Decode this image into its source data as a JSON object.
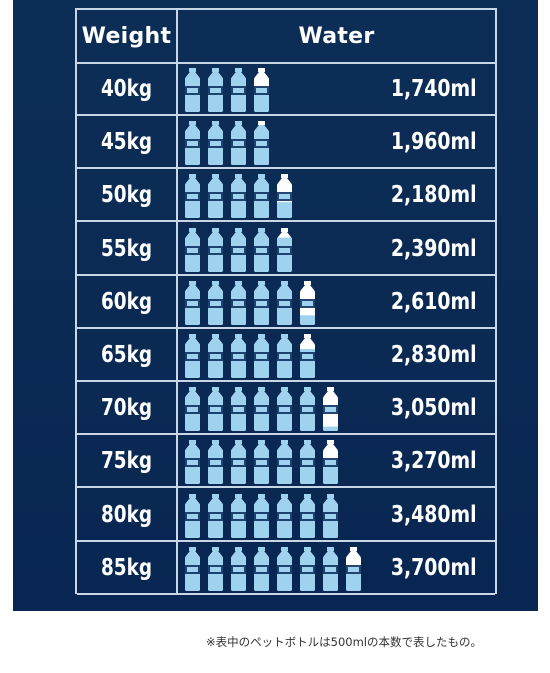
{
  "header": {
    "weight": "Weight",
    "water": "Water"
  },
  "chart_data": {
    "type": "table",
    "columns": [
      "Weight",
      "Water"
    ],
    "rows": [
      {
        "weight": "40kg",
        "water": "1,740ml",
        "water_ml": 1740,
        "bottles_500ml": 3.48
      },
      {
        "weight": "45kg",
        "water": "1,960ml",
        "water_ml": 1960,
        "bottles_500ml": 3.92
      },
      {
        "weight": "50kg",
        "water": "2,180ml",
        "water_ml": 2180,
        "bottles_500ml": 4.36
      },
      {
        "weight": "55kg",
        "water": "2,390ml",
        "water_ml": 2390,
        "bottles_500ml": 4.78
      },
      {
        "weight": "60kg",
        "water": "2,610ml",
        "water_ml": 2610,
        "bottles_500ml": 5.22
      },
      {
        "weight": "65kg",
        "water": "2,830ml",
        "water_ml": 2830,
        "bottles_500ml": 5.66
      },
      {
        "weight": "70kg",
        "water": "3,050ml",
        "water_ml": 3050,
        "bottles_500ml": 6.1
      },
      {
        "weight": "75kg",
        "water": "3,270ml",
        "water_ml": 3270,
        "bottles_500ml": 6.54
      },
      {
        "weight": "80kg",
        "water": "3,480ml",
        "water_ml": 3480,
        "bottles_500ml": 6.96
      },
      {
        "weight": "85kg",
        "water": "3,700ml",
        "water_ml": 3700,
        "bottles_500ml": 7.4
      }
    ]
  },
  "footnote": "※表中のペットボトルは500mlの本数で表したもの。",
  "colors": {
    "background": "#0b2b55",
    "grid": "#c9d6e6",
    "water": "#9fd2ef",
    "bottle_empty": "#ffffff",
    "text": "#ffffff"
  },
  "icons": {
    "bottle": "water-bottle-icon"
  }
}
